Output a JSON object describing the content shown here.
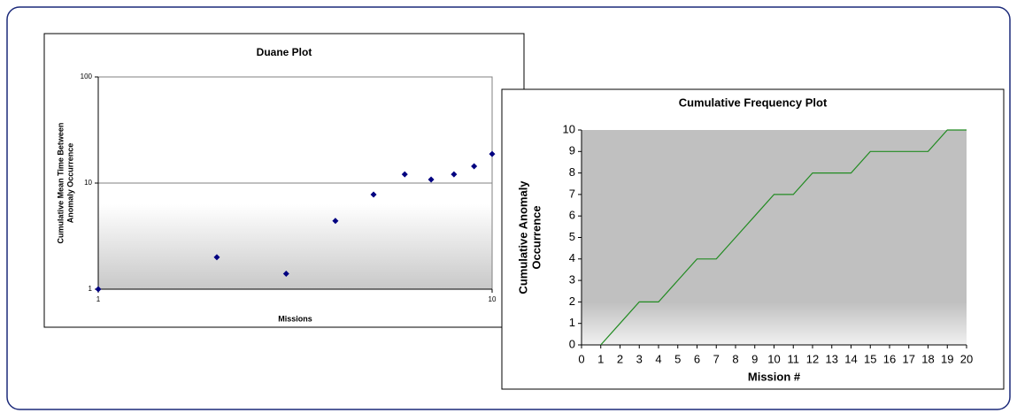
{
  "chart_data": [
    {
      "type": "scatter",
      "title": "Duane Plot",
      "x_label": "Missions",
      "y_label": [
        "Cumulative Mean Time Between",
        "Anomaly Occurrence"
      ],
      "x": [
        1,
        2,
        3,
        4,
        5,
        6,
        7,
        8,
        9,
        10
      ],
      "values": [
        1,
        2.0,
        1.4,
        4.4,
        7.8,
        12.1,
        10.8,
        12.1,
        14.4,
        18.8
      ],
      "color": "#000080",
      "xlim": [
        1,
        10
      ],
      "ylim": [
        1,
        100
      ],
      "xticks": [
        1,
        10
      ],
      "yticks": [
        1,
        10,
        100
      ],
      "xlog": true,
      "ylog": true,
      "grid": true
    },
    {
      "type": "line",
      "title": "Cumulative Frequency Plot",
      "x_label": "Mission #",
      "y_label": [
        "Cumulative Anomaly",
        "Occurrence"
      ],
      "x": [
        1,
        2,
        3,
        4,
        5,
        6,
        7,
        8,
        9,
        10,
        11,
        12,
        13,
        14,
        15,
        16,
        17,
        18,
        19,
        20
      ],
      "values": [
        0,
        1,
        2,
        2,
        3,
        4,
        4,
        5,
        6,
        7,
        7,
        8,
        8,
        8,
        9,
        9,
        9,
        9,
        10,
        10
      ],
      "color": "#228b22",
      "xlim": [
        0,
        20
      ],
      "ylim": [
        0,
        10
      ],
      "xticks": [
        0,
        1,
        2,
        3,
        4,
        5,
        6,
        7,
        8,
        9,
        10,
        11,
        12,
        13,
        14,
        15,
        16,
        17,
        18,
        19,
        20
      ],
      "yticks": [
        0,
        1,
        2,
        3,
        4,
        5,
        6,
        7,
        8,
        9,
        10
      ],
      "xlog": false,
      "ylog": false,
      "grid": false
    }
  ]
}
